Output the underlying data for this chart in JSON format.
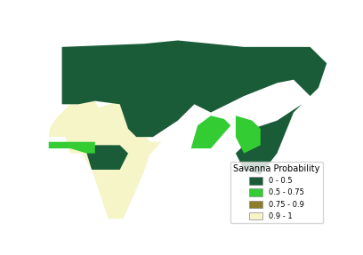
{
  "legend_title": "Savanna Probability",
  "legend_entries": [
    {
      "label": "0 - 0.5",
      "color": "#1a5c38"
    },
    {
      "label": "0.5 - 0.75",
      "color": "#33cc33"
    },
    {
      "label": "0.75 - 0.9",
      "color": "#8b7d2a"
    },
    {
      "label": "0.9 - 1",
      "color": "#f5f5c8"
    }
  ],
  "background_color": "#ffffff",
  "legend_title_fontsize": 7,
  "legend_label_fontsize": 6,
  "fig_width": 4.08,
  "fig_height": 2.87,
  "dpi": 100,
  "extent": [
    -20,
    150,
    -40,
    80
  ],
  "cream": "#f5f5c8",
  "dark_green": "#1a5c38",
  "bright_green": "#33cc33",
  "olive": "#8b7d2a",
  "country_colors": {
    "SAU": "#f5f5c8",
    "YEM": "#f5f5c8",
    "OMN": "#f5f5c8",
    "ARE": "#f5f5c8",
    "QAT": "#f5f5c8",
    "KWT": "#f5f5c8",
    "BHR": "#f5f5c8",
    "IRQ": "#f5f5c8",
    "SYR": "#1a5c38",
    "JOR": "#f5f5c8",
    "ISR": "#1a5c38",
    "PSE": "#1a5c38",
    "LBN": "#1a5c38",
    "DZA": "#f5f5c8",
    "LBY": "#f5f5c8",
    "EGY": "#f5f5c8",
    "TUN": "#1a5c38",
    "MAR": "#1a5c38",
    "ESH": "#f5f5c8",
    "MRT": "#f5f5c8",
    "MLI": "#f5f5c8",
    "NER": "#f5f5c8",
    "TCD": "#f5f5c8",
    "SDN": "#f5f5c8",
    "SSD": "#f5f5c8",
    "NGA": "#f5f5c8",
    "BFA": "#f5f5c8",
    "GHA": "#f5f5c8",
    "TGO": "#f5f5c8",
    "BEN": "#f5f5c8",
    "NAM": "#f5f5c8",
    "BWA": "#f5f5c8",
    "ZMB": "#f5f5c8",
    "ZWE": "#f5f5c8",
    "MOZ": "#f5f5c8",
    "AGO": "#f5f5c8",
    "TZA": "#f5f5c8",
    "KEN": "#f5f5c8",
    "ETH": "#f5f5c8",
    "SOM": "#f5f5c8",
    "MWI": "#f5f5c8",
    "MDG": "#f5f5c8",
    "ZAF": "#f5f5c8",
    "LSO": "#f5f5c8",
    "SWZ": "#f5f5c8",
    "AFG": "#f5f5c8",
    "PAK": "#f5f5c8",
    "IRN": "#f5f5c8",
    "SEN": "#33cc33",
    "GMB": "#33cc33",
    "GNB": "#33cc33",
    "GIN": "#33cc33",
    "SLE": "#33cc33",
    "LBR": "#33cc33",
    "CIV": "#33cc33",
    "CMR": "#33cc33",
    "UGA": "#33cc33",
    "RWA": "#33cc33",
    "BDI": "#33cc33",
    "IND": "#33cc33",
    "BGD": "#33cc33",
    "NPL": "#33cc33",
    "BTN": "#33cc33",
    "LKA": "#33cc33",
    "THA": "#33cc33",
    "KHM": "#33cc33",
    "LAO": "#33cc33",
    "VNM": "#33cc33",
    "MYS": "#33cc33",
    "SGP": "#33cc33",
    "MMR": "#33cc33",
    "COD": "#1a5c38",
    "COG": "#1a5c38",
    "GAB": "#1a5c38",
    "GNQ": "#1a5c38",
    "CAF": "#1a5c38",
    "RUS": "#1a5c38",
    "KAZ": "#1a5c38",
    "MNG": "#1a5c38",
    "CHN": "#1a5c38",
    "JPN": "#1a5c38",
    "KOR": "#1a5c38",
    "PRK": "#1a5c38",
    "TUR": "#1a5c38",
    "GEO": "#1a5c38",
    "ARM": "#1a5c38",
    "AZE": "#1a5c38",
    "UZB": "#1a5c38",
    "TKM": "#1a5c38",
    "KGZ": "#1a5c38",
    "TJK": "#1a5c38",
    "UKR": "#1a5c38",
    "BLR": "#1a5c38",
    "MDA": "#1a5c38",
    "POL": "#1a5c38",
    "CZE": "#1a5c38",
    "SVK": "#1a5c38",
    "HUN": "#1a5c38",
    "AUT": "#1a5c38",
    "DEU": "#1a5c38",
    "CHE": "#1a5c38",
    "LIE": "#1a5c38",
    "FRA": "#1a5c38",
    "BEL": "#1a5c38",
    "NLD": "#1a5c38",
    "LUX": "#1a5c38",
    "GBR": "#1a5c38",
    "IRL": "#1a5c38",
    "ISL": "#1a5c38",
    "NOR": "#1a5c38",
    "SWE": "#1a5c38",
    "FIN": "#1a5c38",
    "DNK": "#1a5c38",
    "EST": "#1a5c38",
    "LVA": "#1a5c38",
    "LTU": "#1a5c38",
    "ESP": "#1a5c38",
    "PRT": "#1a5c38",
    "ITA": "#1a5c38",
    "GRC": "#1a5c38",
    "HRV": "#1a5c38",
    "BIH": "#1a5c38",
    "SRB": "#1a5c38",
    "MNE": "#1a5c38",
    "ALB": "#1a5c38",
    "MKD": "#1a5c38",
    "BGR": "#1a5c38",
    "ROU": "#1a5c38",
    "SVN": "#1a5c38",
    "IDN": "#1a5c38",
    "PHL": "#1a5c38",
    "TWN": "#1a5c38",
    "XKX": "#1a5c38"
  }
}
